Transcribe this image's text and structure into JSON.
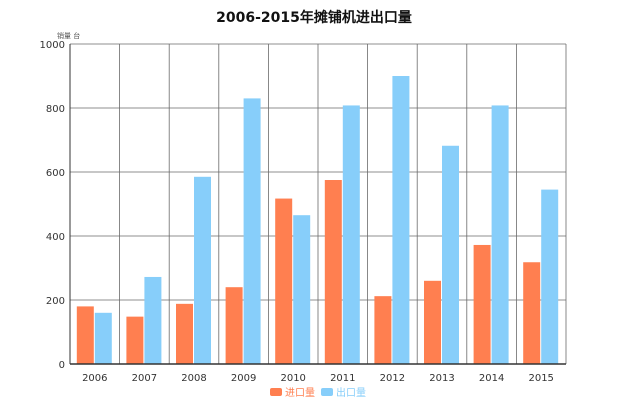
{
  "chart_data": {
    "type": "bar",
    "title": "2006-2015年摊铺机进出口量",
    "ylabel": "销量 台",
    "xlabel": "",
    "categories": [
      "2006",
      "2007",
      "2008",
      "2009",
      "2010",
      "2011",
      "2012",
      "2013",
      "2014",
      "2015"
    ],
    "series": [
      {
        "name": "进口量",
        "color": "#ff7f50",
        "values": [
          180,
          148,
          188,
          240,
          517,
          575,
          212,
          260,
          372,
          318
        ]
      },
      {
        "name": "出口量",
        "color": "#87cefa",
        "values": [
          160,
          272,
          585,
          830,
          465,
          808,
          900,
          682,
          808,
          545
        ]
      }
    ],
    "ylim": [
      0,
      1000
    ],
    "yticks": [
      0,
      200,
      400,
      600,
      800,
      1000
    ],
    "grid": true,
    "legend": "bottom-center"
  }
}
